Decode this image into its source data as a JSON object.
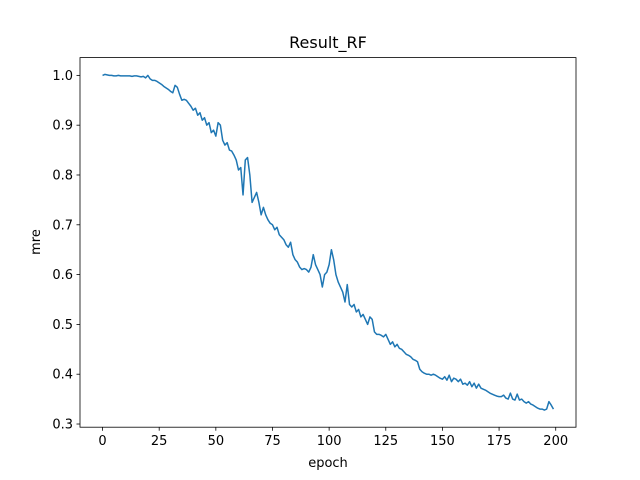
{
  "chart_data": {
    "type": "line",
    "title": "Result_RF",
    "x_label": "epoch",
    "y_label": "mre",
    "x": [
      0,
      1,
      2,
      3,
      4,
      5,
      6,
      7,
      8,
      9,
      10,
      11,
      12,
      13,
      14,
      15,
      16,
      17,
      18,
      19,
      20,
      21,
      22,
      23,
      24,
      25,
      26,
      27,
      28,
      29,
      30,
      31,
      32,
      33,
      34,
      35,
      36,
      37,
      38,
      39,
      40,
      41,
      42,
      43,
      44,
      45,
      46,
      47,
      48,
      49,
      50,
      51,
      52,
      53,
      54,
      55,
      56,
      57,
      58,
      59,
      60,
      61,
      62,
      63,
      64,
      65,
      66,
      67,
      68,
      69,
      70,
      71,
      72,
      73,
      74,
      75,
      76,
      77,
      78,
      79,
      80,
      81,
      82,
      83,
      84,
      85,
      86,
      87,
      88,
      89,
      90,
      91,
      92,
      93,
      94,
      95,
      96,
      97,
      98,
      99,
      100,
      101,
      102,
      103,
      104,
      105,
      106,
      107,
      108,
      109,
      110,
      111,
      112,
      113,
      114,
      115,
      116,
      117,
      118,
      119,
      120,
      121,
      122,
      123,
      124,
      125,
      126,
      127,
      128,
      129,
      130,
      131,
      132,
      133,
      134,
      135,
      136,
      137,
      138,
      139,
      140,
      141,
      142,
      143,
      144,
      145,
      146,
      147,
      148,
      149,
      150,
      151,
      152,
      153,
      154,
      155,
      156,
      157,
      158,
      159,
      160,
      161,
      162,
      163,
      164,
      165,
      166,
      167,
      168,
      169,
      170,
      171,
      172,
      173,
      174,
      175,
      176,
      177,
      178,
      179,
      180,
      181,
      182,
      183,
      184,
      185,
      186,
      187,
      188,
      189,
      190,
      191,
      192,
      193,
      194,
      195,
      196,
      197,
      198,
      199
    ],
    "series": [
      {
        "color": "#1f77b4",
        "values": [
          1.0,
          1.002,
          1.001,
          1.0,
          1.0,
          0.999,
          0.999,
          1.0,
          0.999,
          0.999,
          0.999,
          0.999,
          0.999,
          0.998,
          0.999,
          0.999,
          0.998,
          0.997,
          0.998,
          0.995,
          1.0,
          0.993,
          0.99,
          0.99,
          0.988,
          0.985,
          0.982,
          0.978,
          0.975,
          0.972,
          0.968,
          0.965,
          0.98,
          0.976,
          0.962,
          0.95,
          0.952,
          0.95,
          0.944,
          0.938,
          0.93,
          0.934,
          0.92,
          0.925,
          0.91,
          0.915,
          0.9,
          0.905,
          0.885,
          0.89,
          0.878,
          0.905,
          0.9,
          0.87,
          0.86,
          0.865,
          0.85,
          0.848,
          0.84,
          0.83,
          0.81,
          0.815,
          0.76,
          0.83,
          0.835,
          0.8,
          0.745,
          0.755,
          0.765,
          0.745,
          0.72,
          0.735,
          0.72,
          0.71,
          0.703,
          0.7,
          0.69,
          0.695,
          0.68,
          0.675,
          0.67,
          0.66,
          0.655,
          0.665,
          0.64,
          0.63,
          0.625,
          0.615,
          0.61,
          0.612,
          0.61,
          0.605,
          0.615,
          0.64,
          0.62,
          0.61,
          0.6,
          0.575,
          0.6,
          0.605,
          0.62,
          0.65,
          0.63,
          0.6,
          0.585,
          0.575,
          0.565,
          0.545,
          0.58,
          0.54,
          0.535,
          0.54,
          0.525,
          0.53,
          0.515,
          0.52,
          0.51,
          0.5,
          0.515,
          0.51,
          0.485,
          0.48,
          0.48,
          0.478,
          0.475,
          0.48,
          0.47,
          0.46,
          0.465,
          0.455,
          0.46,
          0.452,
          0.45,
          0.445,
          0.44,
          0.438,
          0.435,
          0.43,
          0.428,
          0.425,
          0.41,
          0.405,
          0.402,
          0.4,
          0.4,
          0.398,
          0.4,
          0.398,
          0.395,
          0.392,
          0.39,
          0.395,
          0.388,
          0.398,
          0.385,
          0.392,
          0.39,
          0.385,
          0.39,
          0.38,
          0.382,
          0.378,
          0.385,
          0.375,
          0.382,
          0.372,
          0.38,
          0.372,
          0.37,
          0.368,
          0.365,
          0.362,
          0.36,
          0.358,
          0.356,
          0.355,
          0.355,
          0.358,
          0.352,
          0.35,
          0.362,
          0.35,
          0.348,
          0.36,
          0.348,
          0.35,
          0.345,
          0.342,
          0.345,
          0.34,
          0.338,
          0.335,
          0.332,
          0.33,
          0.33,
          0.328,
          0.33,
          0.345,
          0.338,
          0.33
        ]
      }
    ],
    "xlim": [
      -9.95,
      208.95
    ],
    "xticks": [
      0,
      25,
      50,
      75,
      100,
      125,
      150,
      175,
      200
    ],
    "ylim": [
      0.2936,
      1.0357
    ],
    "yticks": [
      0.3,
      0.4,
      0.5,
      0.6,
      0.7,
      0.8,
      0.9,
      {
        "value": 1,
        "label": "1.0"
      }
    ],
    "grid": false
  }
}
